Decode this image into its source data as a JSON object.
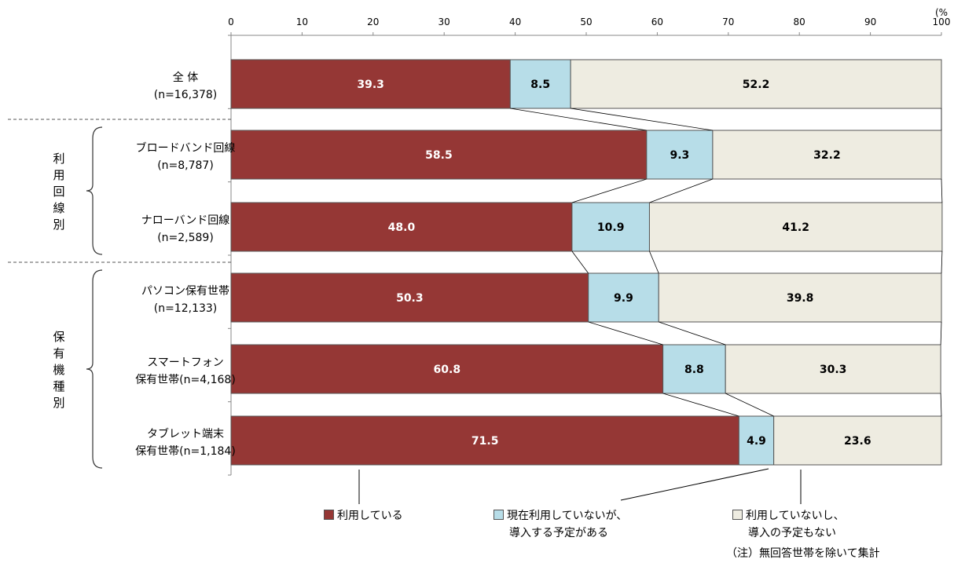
{
  "chart_data": {
    "type": "bar",
    "orientation": "horizontal",
    "stacked": true,
    "unit_label": "(%",
    "xlim": [
      0,
      100
    ],
    "x_ticks": [
      "0",
      "10",
      "20",
      "30",
      "40",
      "50",
      "60",
      "70",
      "80",
      "90",
      "100"
    ],
    "categories": [
      {
        "name": "全 体",
        "n": "(n=16,378)"
      },
      {
        "name": "ブロードバンド回線",
        "n": "(n=8,787)"
      },
      {
        "name": "ナローバンド回線",
        "n": "(n=2,589)"
      },
      {
        "name": "パソコン保有世帯",
        "n": "(n=12,133)"
      },
      {
        "name": "スマートフォン",
        "n": "保有世帯(n=4,168)"
      },
      {
        "name": "タブレット端末",
        "n": "保有世帯(n=1,184)"
      }
    ],
    "groups": [
      {
        "label": "利用回線別",
        "rows": [
          1,
          2
        ]
      },
      {
        "label": "保有機種別",
        "rows": [
          3,
          4,
          5
        ]
      }
    ],
    "series": [
      {
        "name": "利用している",
        "name_line2": "",
        "color": "#953735",
        "label_color": "#ffffff",
        "values": [
          39.3,
          58.5,
          48.0,
          50.3,
          60.8,
          71.5
        ],
        "labels": [
          "39.3",
          "58.5",
          "48.0",
          "50.3",
          "60.8",
          "71.5"
        ]
      },
      {
        "name": "現在利用していないが、",
        "name_line2": "導入する予定がある",
        "color": "#b7dde8",
        "label_color": "#000000",
        "values": [
          8.5,
          9.3,
          10.9,
          9.9,
          8.8,
          4.9
        ],
        "labels": [
          "8.5",
          "9.3",
          "10.9",
          "9.9",
          "8.8",
          "4.9"
        ]
      },
      {
        "name": "利用していないし、",
        "name_line2": "導入の予定もない",
        "color": "#eeece1",
        "label_color": "#000000",
        "values": [
          52.2,
          32.2,
          41.2,
          39.8,
          30.3,
          23.6
        ],
        "labels": [
          "52.2",
          "32.2",
          "41.2",
          "39.8",
          "30.3",
          "23.6"
        ]
      }
    ]
  },
  "note": "（注）無回答世帯を除いて集計"
}
